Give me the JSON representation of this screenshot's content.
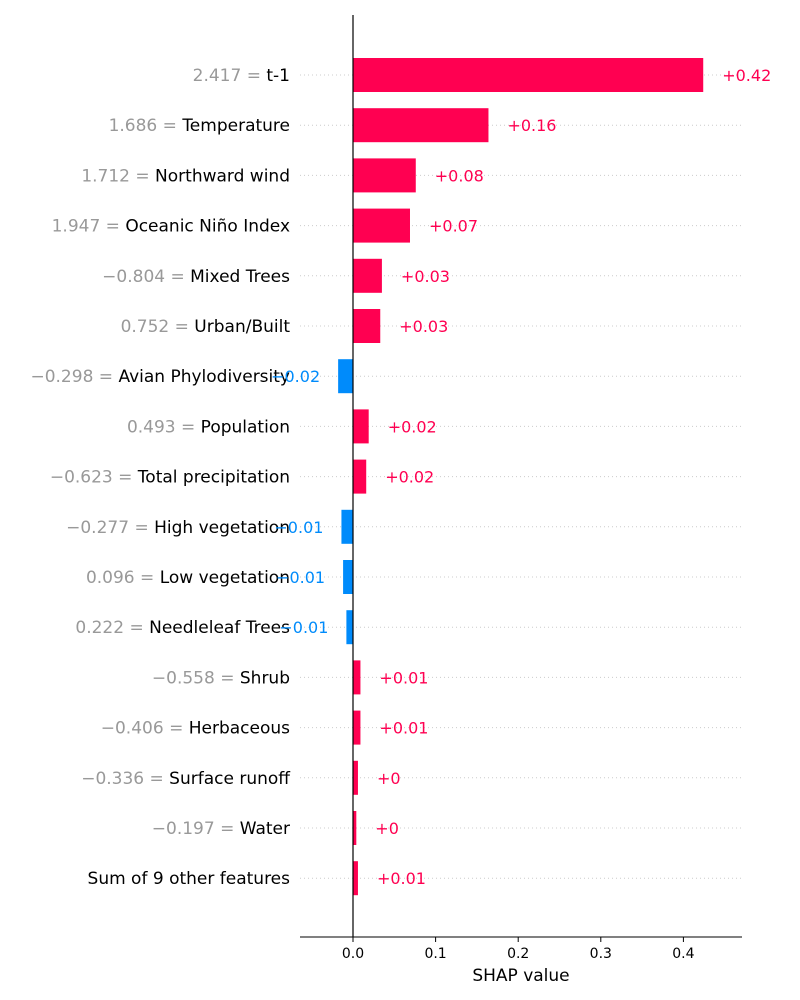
{
  "chart_data": {
    "type": "bar",
    "chart_kind": "shap-waterfall-bar",
    "orientation": "horizontal",
    "xlabel": "SHAP value",
    "xlim": [
      -0.064,
      0.47
    ],
    "xticks": [
      "0.0",
      "0.1",
      "0.2",
      "0.3",
      "0.4"
    ],
    "grid": "dotted horizontal guides per row",
    "colors": {
      "positive": "#ff0051",
      "negative": "#008bfb",
      "value_text": "#999999",
      "guide": "#cccccc"
    },
    "rows": [
      {
        "feature": "t-1",
        "feature_value": "2.417",
        "value": 0.424,
        "label": "+0.42"
      },
      {
        "feature": "Temperature",
        "feature_value": "1.686",
        "value": 0.164,
        "label": "+0.16"
      },
      {
        "feature": "Northward wind",
        "feature_value": "1.712",
        "value": 0.076,
        "label": "+0.08"
      },
      {
        "feature": "Oceanic Niño Index",
        "feature_value": "1.947",
        "value": 0.069,
        "label": "+0.07"
      },
      {
        "feature": "Mixed Trees",
        "feature_value": "−0.804",
        "value": 0.035,
        "label": "+0.03"
      },
      {
        "feature": "Urban/Built",
        "feature_value": "0.752",
        "value": 0.033,
        "label": "+0.03"
      },
      {
        "feature": "Avian Phylodiversity",
        "feature_value": "−0.298",
        "value": -0.018,
        "label": "−0.02"
      },
      {
        "feature": "Population",
        "feature_value": "0.493",
        "value": 0.019,
        "label": "+0.02"
      },
      {
        "feature": "Total precipitation",
        "feature_value": "−0.623",
        "value": 0.016,
        "label": "+0.02"
      },
      {
        "feature": "High vegetation",
        "feature_value": "−0.277",
        "value": -0.014,
        "label": "−0.01"
      },
      {
        "feature": "Low vegetation",
        "feature_value": "0.096",
        "value": -0.012,
        "label": "−0.01"
      },
      {
        "feature": "Needleleaf Trees",
        "feature_value": "0.222",
        "value": -0.008,
        "label": "−0.01"
      },
      {
        "feature": "Shrub",
        "feature_value": "−0.558",
        "value": 0.009,
        "label": "+0.01"
      },
      {
        "feature": "Herbaceous",
        "feature_value": "−0.406",
        "value": 0.009,
        "label": "+0.01"
      },
      {
        "feature": "Surface runoff",
        "feature_value": "−0.336",
        "value": 0.006,
        "label": "+0"
      },
      {
        "feature": "Water",
        "feature_value": "−0.197",
        "value": 0.004,
        "label": "+0"
      },
      {
        "feature": "Sum of 9 other features",
        "feature_value": "",
        "value": 0.006,
        "label": "+0.01"
      }
    ]
  }
}
